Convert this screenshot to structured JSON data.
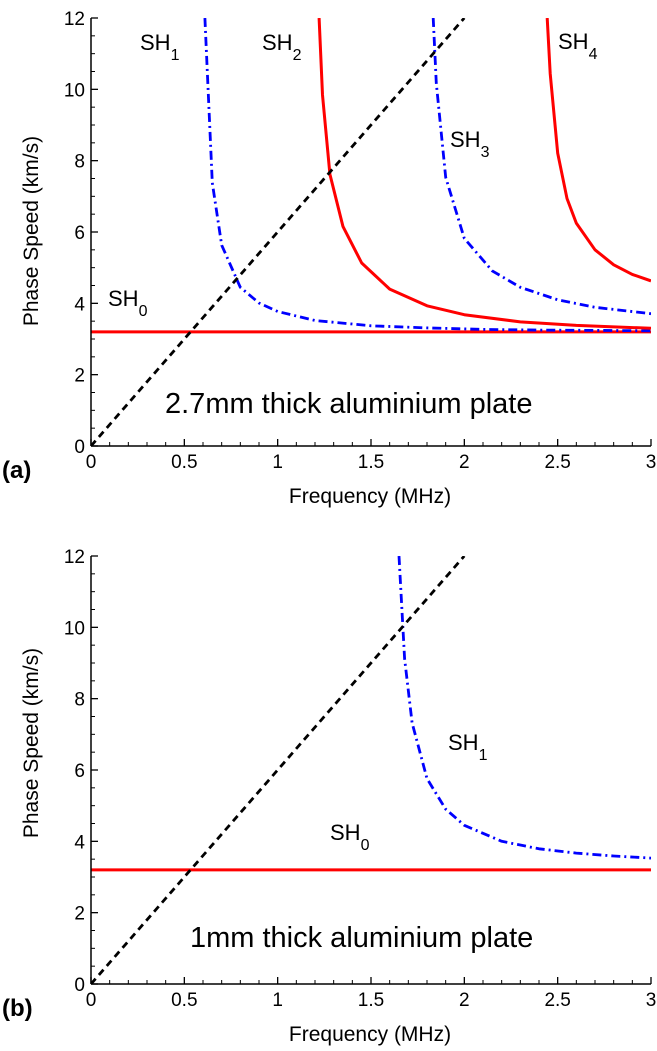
{
  "chart_data": [
    {
      "panel": "(a)",
      "type": "line",
      "annotation": "2.7mm thick aluminium plate",
      "xlabel": "Frequency (MHz)",
      "ylabel": "Phase Speed (km/s)",
      "xlim": [
        0,
        3
      ],
      "ylim": [
        0,
        12
      ],
      "xticks": [
        "0",
        "0.5",
        "1",
        "1.5",
        "2",
        "2.5",
        "3"
      ],
      "yticks": [
        "0",
        "2",
        "4",
        "6",
        "8",
        "10",
        "12"
      ],
      "grid": false,
      "series": [
        {
          "name": "SH0",
          "style": "solid",
          "color": "#ff0000",
          "x": [
            0,
            3
          ],
          "y": [
            3.2,
            3.2
          ]
        },
        {
          "name": "SH1",
          "style": "dashdot",
          "color": "#0000ff",
          "x": [
            0.61,
            0.65,
            0.7,
            0.8,
            0.9,
            1.0,
            1.2,
            1.5,
            1.8,
            2.1,
            2.4,
            2.7,
            3.0
          ],
          "y": [
            12.0,
            7.38,
            5.63,
            4.45,
            4.01,
            3.77,
            3.52,
            3.37,
            3.31,
            3.27,
            3.25,
            3.24,
            3.23
          ]
        },
        {
          "name": "SH2",
          "style": "solid",
          "color": "#ff0000",
          "x": [
            1.222,
            1.24,
            1.28,
            1.35,
            1.45,
            1.6,
            1.8,
            2.0,
            2.3,
            2.6,
            3.0
          ],
          "y": [
            12.0,
            9.84,
            7.62,
            6.15,
            5.13,
            4.4,
            3.93,
            3.68,
            3.48,
            3.38,
            3.3
          ]
        },
        {
          "name": "SH3",
          "style": "dashdot",
          "color": "#0000ff",
          "x": [
            1.833,
            1.85,
            1.9,
            2.0,
            2.15,
            2.3,
            2.5,
            2.7,
            3.0
          ],
          "y": [
            12.0,
            10.17,
            7.53,
            5.82,
            4.91,
            4.45,
            4.1,
            3.89,
            3.71
          ]
        },
        {
          "name": "SH4",
          "style": "solid",
          "color": "#ff0000",
          "x": [
            2.444,
            2.46,
            2.5,
            2.55,
            2.6,
            2.7,
            2.8,
            2.9,
            3.0
          ],
          "y": [
            12.0,
            10.44,
            8.21,
            6.94,
            6.25,
            5.5,
            5.08,
            4.81,
            4.63
          ]
        },
        {
          "name": "",
          "style": "dashed",
          "color": "#000000",
          "x": [
            0,
            2.0
          ],
          "y": [
            0,
            12.0
          ]
        }
      ],
      "labels": [
        {
          "base": "SH",
          "sub": "0"
        },
        {
          "base": "SH",
          "sub": "1"
        },
        {
          "base": "SH",
          "sub": "2"
        },
        {
          "base": "SH",
          "sub": "3"
        },
        {
          "base": "SH",
          "sub": "4"
        }
      ]
    },
    {
      "panel": "(b)",
      "type": "line",
      "annotation": "1mm thick aluminium plate",
      "xlabel": "Frequency (MHz)",
      "ylabel": "Phase Speed (km/s)",
      "xlim": [
        0,
        3
      ],
      "ylim": [
        0,
        12
      ],
      "xticks": [
        "0",
        "0.5",
        "1",
        "1.5",
        "2",
        "2.5",
        "3"
      ],
      "yticks": [
        "0",
        "2",
        "4",
        "6",
        "8",
        "10",
        "12"
      ],
      "grid": false,
      "series": [
        {
          "name": "SH0",
          "style": "solid",
          "color": "#ff0000",
          "x": [
            0,
            3
          ],
          "y": [
            3.2,
            3.2
          ]
        },
        {
          "name": "SH1",
          "style": "dashdot",
          "color": "#0000ff",
          "x": [
            1.65,
            1.68,
            1.72,
            1.8,
            1.9,
            2.0,
            2.2,
            2.4,
            2.6,
            2.8,
            3.0
          ],
          "y": [
            12.0,
            9.12,
            7.32,
            5.76,
            4.9,
            4.45,
            4.0,
            3.79,
            3.67,
            3.59,
            3.53
          ]
        },
        {
          "name": "",
          "style": "dashed",
          "color": "#000000",
          "x": [
            0,
            2.0
          ],
          "y": [
            0,
            12.0
          ]
        }
      ],
      "labels": [
        {
          "base": "SH",
          "sub": "0"
        },
        {
          "base": "SH",
          "sub": "1"
        }
      ]
    }
  ]
}
